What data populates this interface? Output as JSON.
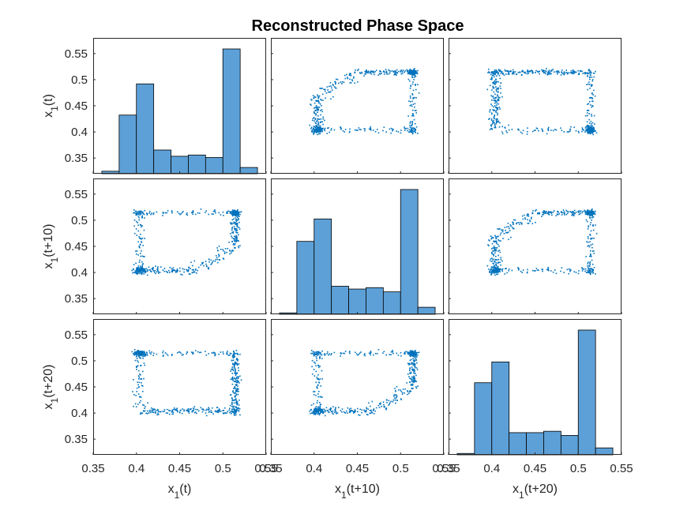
{
  "chart_data": {
    "type": "scatter-matrix",
    "title": "Reconstructed Phase Space",
    "variables": [
      "x_1(t)",
      "x_1(t+10)",
      "x_1(t+20)"
    ],
    "axis_labels": [
      {
        "base": "x",
        "sub": "1",
        "suffix": "(t)"
      },
      {
        "base": "x",
        "sub": "1",
        "suffix": "(t+10)"
      },
      {
        "base": "x",
        "sub": "1",
        "suffix": "(t+20)"
      }
    ],
    "xlim": [
      0.35,
      0.55
    ],
    "ylim": [
      0.32,
      0.58
    ],
    "x_ticks": [
      "0.35",
      "0.4",
      "0.45",
      "0.5",
      "0.55"
    ],
    "y_ticks": [
      "0.35",
      "0.4",
      "0.45",
      "0.5",
      "0.55"
    ],
    "hist_bin_edges": [
      0.36,
      0.38,
      0.4,
      0.42,
      0.44,
      0.46,
      0.48,
      0.5,
      0.52,
      0.54
    ],
    "histograms": [
      {
        "variable": "x_1(t)",
        "counts": [
          2,
          47,
          72,
          19,
          14,
          15,
          13,
          100,
          5
        ]
      },
      {
        "variable": "x_1(t+10)",
        "counts": [
          1,
          52,
          68,
          20,
          18,
          19,
          16,
          89,
          5
        ]
      },
      {
        "variable": "x_1(t+20)",
        "counts": [
          1,
          52,
          67,
          16,
          16,
          17,
          14,
          90,
          5
        ]
      }
    ],
    "grid": false,
    "marker_color": "#0072BD",
    "bar_color": "#5DA0D7",
    "bar_edge_color": "#000000"
  }
}
